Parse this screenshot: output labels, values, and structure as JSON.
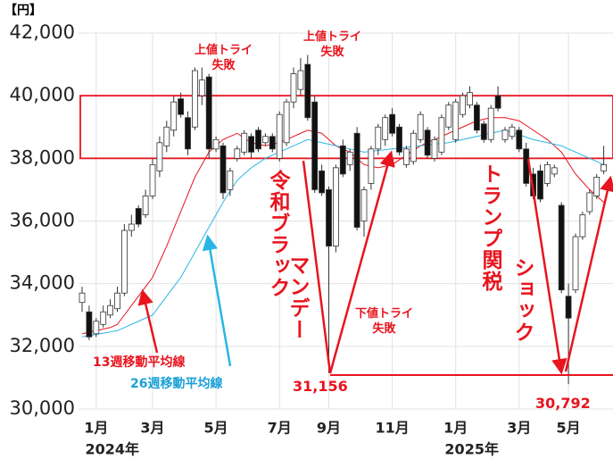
{
  "chart_data": {
    "type": "candlestick",
    "y_label": "【円】",
    "ylim": [
      30000,
      42000
    ],
    "yticks": [
      {
        "value": 30000,
        "label": "30,000"
      },
      {
        "value": 32000,
        "label": "32,000"
      },
      {
        "value": 34000,
        "label": "34,000"
      },
      {
        "value": 36000,
        "label": "36,000"
      },
      {
        "value": 38000,
        "label": "38,000"
      },
      {
        "value": 40000,
        "label": "40,000"
      },
      {
        "value": 42000,
        "label": "42,000"
      }
    ],
    "grid": true,
    "categories": [
      null,
      null,
      "1月",
      null,
      null,
      null,
      null,
      null,
      null,
      null,
      "3月",
      null,
      null,
      null,
      null,
      null,
      null,
      null,
      null,
      "5月",
      null,
      null,
      null,
      null,
      null,
      null,
      null,
      null,
      "7月",
      null,
      null,
      null,
      null,
      null,
      null,
      "9月",
      null,
      null,
      null,
      null,
      null,
      null,
      null,
      null,
      "11月",
      null,
      null,
      null,
      null,
      null,
      null,
      null,
      null,
      "1月",
      null,
      null,
      null,
      null,
      null,
      null,
      null,
      null,
      "3月",
      null,
      null,
      null,
      null,
      null,
      null,
      "5月",
      null,
      null,
      null,
      null,
      null
    ],
    "year_labels": [
      "2024年",
      "2025年"
    ],
    "open": [
      33400,
      33100,
      32400,
      32700,
      33000,
      33200,
      33700,
      35700,
      36400,
      36200,
      36800,
      37600,
      38400,
      38900,
      39900,
      39300,
      39000,
      40000,
      40600,
      38300,
      38400,
      37000,
      38000,
      38200,
      38700,
      38900,
      38500,
      38700,
      38000,
      38500,
      39800,
      40200,
      41000,
      39800,
      37600,
      37000,
      35200,
      38400,
      37800,
      38800,
      36000,
      37200,
      38300,
      38600,
      39400,
      39000,
      37800,
      37900,
      38600,
      38900,
      38000,
      38200,
      39000,
      38600,
      39400,
      39700,
      39700,
      39100,
      38600,
      40000,
      38600,
      38700,
      38900,
      38300,
      37500,
      37600,
      37200,
      37500,
      36500,
      33600,
      33800,
      35500,
      36300,
      36800,
      37600
    ],
    "high": [
      33900,
      33300,
      32900,
      33300,
      33500,
      33900,
      35900,
      36200,
      36500,
      37000,
      38000,
      38700,
      39200,
      40000,
      40100,
      39500,
      40900,
      40900,
      40700,
      38700,
      38500,
      37700,
      38400,
      38900,
      38800,
      39000,
      38800,
      38800,
      39500,
      39900,
      40900,
      41200,
      41300,
      40000,
      37800,
      37100,
      37800,
      38600,
      38300,
      39000,
      37100,
      38400,
      39100,
      39400,
      39600,
      39100,
      38400,
      38900,
      39500,
      39000,
      38700,
      39400,
      39800,
      39900,
      40100,
      40300,
      39800,
      39200,
      39700,
      40300,
      39000,
      39100,
      39000,
      38500,
      37700,
      37800,
      37900,
      37800,
      36600,
      34000,
      35600,
      36300,
      37000,
      37500,
      38400
    ],
    "low": [
      33100,
      32200,
      32300,
      32600,
      32900,
      33100,
      33600,
      35500,
      35800,
      36100,
      36700,
      37400,
      38200,
      38700,
      39300,
      38100,
      38900,
      39700,
      38000,
      38200,
      36700,
      36800,
      37900,
      38100,
      38000,
      38200,
      38400,
      38200,
      37900,
      38400,
      39600,
      40000,
      39200,
      36900,
      36800,
      31156,
      35000,
      37400,
      37600,
      35700,
      35500,
      37000,
      38100,
      38400,
      38700,
      38100,
      37700,
      37800,
      38500,
      38000,
      37900,
      38100,
      38900,
      38500,
      39300,
      39600,
      38800,
      38500,
      38500,
      39500,
      38500,
      38600,
      38200,
      37100,
      36700,
      36600,
      37100,
      37400,
      33700,
      30792,
      33700,
      35400,
      36200,
      36700,
      37500
    ],
    "close": [
      33700,
      32300,
      32800,
      33100,
      33300,
      33700,
      35700,
      35900,
      35900,
      36800,
      37800,
      38500,
      39000,
      39800,
      39400,
      38300,
      40800,
      40500,
      38300,
      38600,
      36900,
      37600,
      38300,
      38800,
      38200,
      38300,
      38700,
      38300,
      39400,
      39800,
      40700,
      40800,
      39300,
      37000,
      36900,
      35200,
      37700,
      37500,
      38200,
      35800,
      37000,
      38300,
      39000,
      39300,
      38800,
      38200,
      38300,
      38800,
      39400,
      38100,
      38600,
      39300,
      39700,
      39800,
      40000,
      40100,
      38900,
      38600,
      39600,
      39600,
      38900,
      39000,
      38300,
      37200,
      36800,
      36700,
      37800,
      37700,
      33800,
      32900,
      35500,
      36200,
      36900,
      37400,
      37800
    ],
    "lines": [
      {
        "name": "13週移動平均線",
        "color": "#e8141e",
        "values": [
          32400,
          32450,
          32500,
          32550,
          32600,
          32700,
          33000,
          33300,
          33600,
          33900,
          34200,
          34700,
          35200,
          35750,
          36300,
          36850,
          37400,
          37800,
          38200,
          38400,
          38600,
          38700,
          38800,
          38650,
          38500,
          38450,
          38400,
          38450,
          38500,
          38600,
          38700,
          38800,
          38900,
          38850,
          38800,
          38600,
          38400,
          38300,
          38200,
          38000,
          37800,
          37750,
          37700,
          37750,
          37800,
          37950,
          38100,
          38250,
          38400,
          38500,
          38600,
          38700,
          38800,
          38900,
          39000,
          39100,
          39200,
          39250,
          39300,
          39300,
          39300,
          39250,
          39200,
          39050,
          38900,
          38750,
          38600,
          38400,
          38200,
          37850,
          37500,
          37250,
          37000,
          36800,
          36600
        ]
      },
      {
        "name": "26週移動平均線",
        "color": "#29b6e6",
        "values": [
          32300,
          32340,
          32380,
          32420,
          32460,
          32500,
          32600,
          32700,
          32800,
          32900,
          33000,
          33300,
          33600,
          33900,
          34200,
          34600,
          35000,
          35400,
          35800,
          36200,
          36600,
          36950,
          37300,
          37500,
          37700,
          37850,
          38000,
          38100,
          38200,
          38300,
          38400,
          38500,
          38600,
          38550,
          38500,
          38450,
          38400,
          38350,
          38300,
          38250,
          38200,
          38225,
          38250,
          38275,
          38300,
          38325,
          38350,
          38375,
          38400,
          38425,
          38450,
          38475,
          38500,
          38550,
          38600,
          38650,
          38700,
          38750,
          38800,
          38850,
          38900,
          38825,
          38750,
          38675,
          38600,
          38550,
          38500,
          38450,
          38400,
          38300,
          38200,
          38100,
          38000,
          37900,
          37800
        ]
      }
    ],
    "band": [
      38000,
      40000
    ],
    "annotations": [
      "上値トライ\n失敗",
      "上値トライ\n失敗",
      "下値トライ\n失敗",
      "令和ブラック",
      "マンデー",
      "トランプ関税",
      "ショック",
      "31,156",
      "30,792"
    ]
  }
}
